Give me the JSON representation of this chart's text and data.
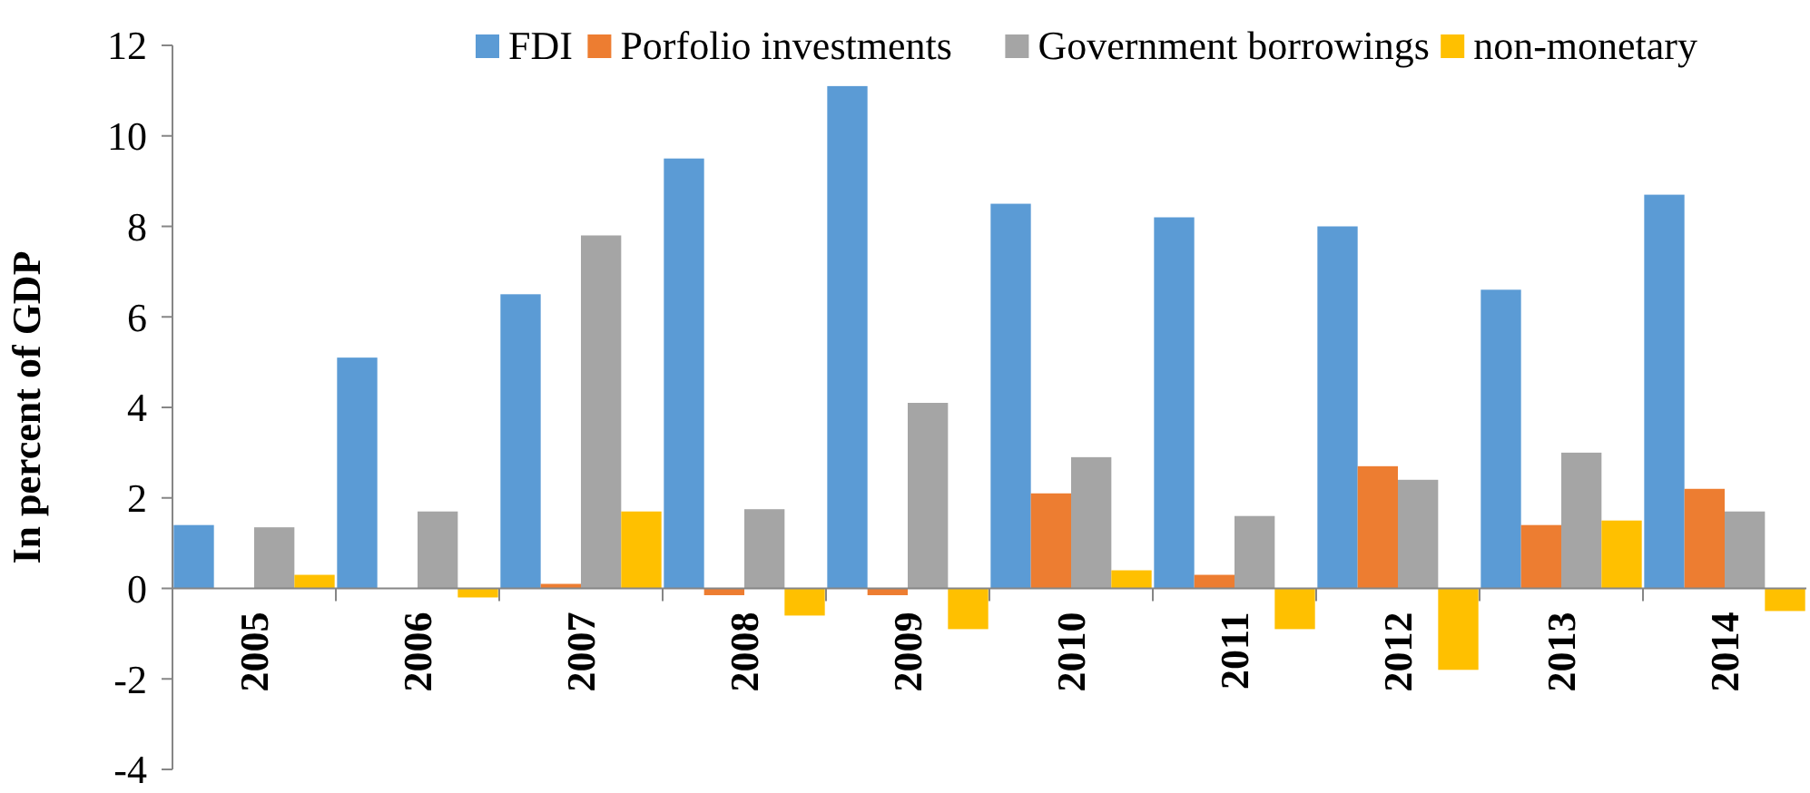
{
  "chart_data": {
    "type": "bar",
    "ylabel": "In  percent of GDP",
    "categories": [
      "2005",
      "2006",
      "2007",
      "2008",
      "2009",
      "2010",
      "2011",
      "2012",
      "2013",
      "2014"
    ],
    "series": [
      {
        "name": "FDI",
        "color": "#5b9bd5",
        "values": [
          1.4,
          5.1,
          6.5,
          9.5,
          11.1,
          8.5,
          8.2,
          8.0,
          6.6,
          8.7
        ]
      },
      {
        "name": "Porfolio investments",
        "color": "#ed7d31",
        "values": [
          0,
          0,
          0.1,
          -0.15,
          -0.15,
          2.1,
          0.3,
          2.7,
          1.4,
          2.2
        ]
      },
      {
        "name": "Government borrowings",
        "color": "#a5a5a5",
        "values": [
          1.35,
          1.7,
          7.8,
          1.75,
          4.1,
          2.9,
          1.6,
          2.4,
          3.0,
          1.7
        ]
      },
      {
        "name": "non-monetary",
        "color": "#ffc000",
        "values": [
          0.3,
          -0.2,
          1.7,
          -0.6,
          -0.9,
          0.4,
          -0.9,
          -1.8,
          1.5,
          -0.5
        ]
      }
    ],
    "ylim": [
      -4,
      12
    ],
    "yticks": [
      -4,
      -2,
      0,
      2,
      4,
      6,
      8,
      10,
      12
    ],
    "grid": false,
    "legend": "top"
  }
}
